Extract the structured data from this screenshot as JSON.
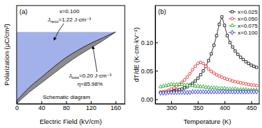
{
  "chart_data": [
    {
      "type": "area",
      "title": "(a)",
      "xlabel": "Electric Field (kV/cm)",
      "ylabel": "Polarization (μC/cm²)",
      "x": [
        0,
        20,
        40,
        60,
        80,
        100,
        120,
        140,
        160
      ],
      "series": [
        {
          "color": "#4d4d4d",
          "values": [
            0,
            6,
            11,
            16,
            21,
            25.5,
            29.5,
            33.5,
            38
          ]
        },
        {
          "color": "#222222",
          "values": [
            1.5,
            8.5,
            14,
            19.5,
            24.5,
            28.5,
            32,
            35,
            38
          ]
        }
      ],
      "xlim": [
        0,
        175
      ],
      "ylim": [
        0,
        52
      ],
      "xticks": [
        0,
        40,
        80,
        120,
        160
      ],
      "tick_labels": "x",
      "annotations": [
        {
          "text": "x=0.100"
        },
        {
          "text": "Jreco=1.22 J·cm⁻³"
        },
        {
          "text": "Jloss=0.20 J·cm⁻³"
        },
        {
          "text": "η=85.98%"
        },
        {
          "text": "Schematic diagram"
        }
      ]
    },
    {
      "type": "line",
      "title": "(b)",
      "xlabel": "Temperature (K)",
      "ylabel": "dT/dE (K·cm·kV⁻¹)",
      "x": [
        280,
        285,
        290,
        295,
        300,
        305,
        310,
        315,
        320,
        325,
        330,
        335,
        340,
        345,
        350,
        355,
        360,
        365,
        370,
        375,
        380,
        385,
        390,
        395,
        400,
        405,
        410,
        415,
        420,
        425,
        430,
        435,
        440,
        445,
        450,
        455,
        460
      ],
      "series": [
        {
          "name": "x=0.025",
          "color": "#000000",
          "marker": "square",
          "values": [
            0.012,
            0.012,
            0.013,
            0.013,
            0.014,
            0.015,
            0.016,
            0.017,
            0.018,
            0.02,
            0.022,
            0.025,
            0.028,
            0.032,
            0.037,
            0.043,
            0.05,
            0.058,
            0.068,
            0.08,
            0.095,
            0.112,
            0.132,
            0.145,
            0.13,
            0.112,
            0.1,
            0.092,
            0.085,
            0.079,
            0.074,
            0.07,
            0.066,
            0.063,
            0.06,
            0.058,
            0.056
          ]
        },
        {
          "name": "x=0.050",
          "color": "#e41a1c",
          "marker": "circle",
          "values": [
            0.012,
            0.013,
            0.014,
            0.016,
            0.018,
            0.02,
            0.023,
            0.026,
            0.03,
            0.034,
            0.039,
            0.045,
            0.052,
            0.058,
            0.063,
            0.065,
            0.063,
            0.058,
            0.053,
            0.049,
            0.046,
            0.043,
            0.041,
            0.039,
            0.037,
            0.035,
            0.034,
            0.032,
            0.031,
            0.03,
            0.029,
            0.028,
            0.027,
            0.026,
            0.025,
            0.025,
            0.024
          ]
        },
        {
          "name": "x=0.075",
          "color": "#17a317",
          "marker": "triangle",
          "values": [
            0.022,
            0.023,
            0.024,
            0.025,
            0.026,
            0.026,
            0.026,
            0.026,
            0.026,
            0.025,
            0.025,
            0.024,
            0.024,
            0.023,
            0.023,
            0.022,
            0.022,
            0.021,
            0.021,
            0.02,
            0.02,
            0.02,
            0.019,
            0.019,
            0.019,
            0.018,
            0.018,
            0.018,
            0.018,
            0.017,
            0.017,
            0.017,
            0.017,
            0.016,
            0.016,
            0.016,
            0.016
          ]
        },
        {
          "name": "x=0.100",
          "color": "#1f1fd9",
          "marker": "diamond",
          "values": [
            0.011,
            0.011,
            0.011,
            0.012,
            0.012,
            0.012,
            0.012,
            0.012,
            0.012,
            0.012,
            0.012,
            0.012,
            0.013,
            0.013,
            0.013,
            0.013,
            0.013,
            0.013,
            0.013,
            0.013,
            0.013,
            0.013,
            0.013,
            0.013,
            0.013,
            0.013,
            0.013,
            0.013,
            0.013,
            0.013,
            0.013,
            0.013,
            0.013,
            0.013,
            0.013,
            0.013,
            0.013
          ]
        }
      ],
      "xlim": [
        270,
        465
      ],
      "ylim": [
        -0.008,
        0.165
      ],
      "xticks": [
        300,
        350,
        400,
        450
      ],
      "yticks": [
        {
          "value": 0,
          "label": "0.00"
        },
        0.05,
        {
          "value": 0.1,
          "label": "0.10"
        }
      ],
      "legend": "upper right"
    }
  ]
}
